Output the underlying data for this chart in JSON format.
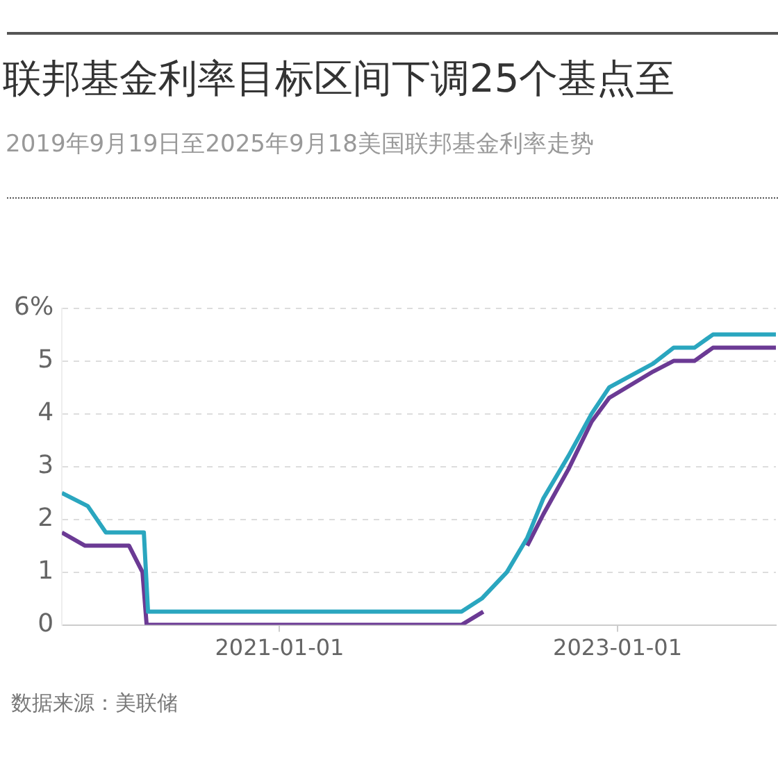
{
  "chart_data": {
    "type": "line",
    "title": "联邦基金利率目标区间下调25个基点至",
    "subtitle": "2019年9月19日至2025年9月18美国联邦基金利率走势",
    "annotations": [
      "数据来源：美联储"
    ],
    "series": [
      {
        "color": "#2aa6bf",
        "x": [
          "2019-09-19",
          "2019-11-14",
          "2019-12-23",
          "2020-03-14",
          "2020-03-23",
          "2022-01-29",
          "2022-03-14",
          "2022-05-07",
          "2022-06-20",
          "2022-07-25",
          "2022-09-17",
          "2022-11-06",
          "2022-12-14",
          "2023-03-19",
          "2023-05-02",
          "2023-06-16",
          "2023-07-26",
          "2023-12-09"
        ],
        "values": [
          2.5,
          2.25,
          1.75,
          1.75,
          0.25,
          0.25,
          0.5,
          1,
          1.65,
          2.4,
          3.2,
          4,
          4.5,
          4.95,
          5.25,
          5.25,
          5.5,
          5.5
        ]
      },
      {
        "color": "#6b3a94",
        "x": [
          "2019-09-19",
          "2019-11-08",
          "2020-02-11",
          "2020-03-11",
          "2020-03-20",
          "2022-01-29",
          "2022-03-17",
          "2022-05-01",
          "2022-06-20",
          "2022-07-25",
          "2022-09-17",
          "2022-11-06",
          "2022-12-14",
          "2023-03-19",
          "2023-05-02",
          "2023-06-16",
          "2023-07-26",
          "2023-12-09"
        ],
        "values": [
          1.75,
          1.5,
          1.5,
          1,
          0,
          0,
          0.25,
          null,
          1.5,
          2.1,
          2.95,
          3.85,
          4.3,
          4.8,
          5,
          5,
          5.25,
          5.25
        ]
      }
    ],
    "xlim": [
      "2019-09-19",
      "2023-12-09"
    ],
    "xticks": [
      "2021-01-01",
      "2023-01-01"
    ],
    "ylim": [
      0,
      6
    ],
    "yticks": [
      0,
      1,
      2,
      3,
      4,
      5,
      {
        "value": 6,
        "label": "6%"
      }
    ],
    "grid": "y",
    "legend": false,
    "marker": "none",
    "line_style": "solid"
  }
}
